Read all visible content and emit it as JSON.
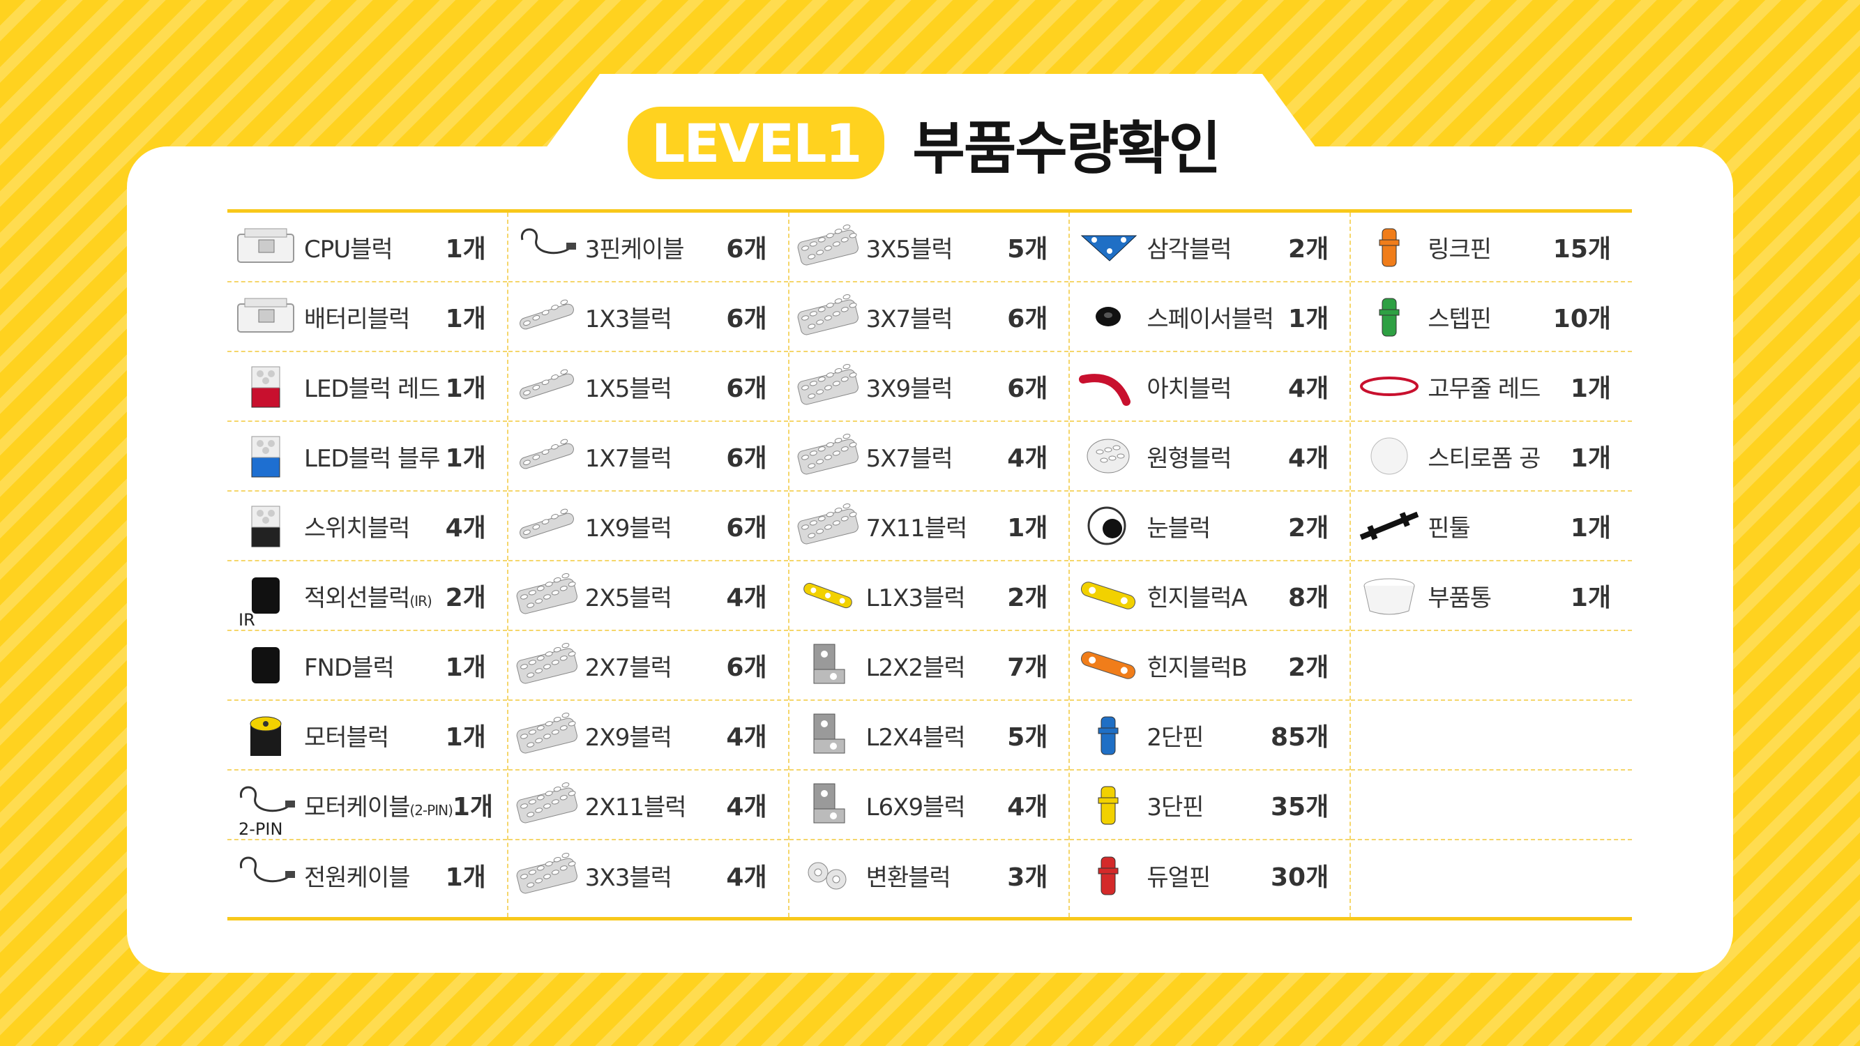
{
  "header": {
    "level": "LEVEL1",
    "title": "부품수량확인"
  },
  "columns": [
    {
      "items": [
        {
          "name": "CPU블럭",
          "qty": "1개",
          "icon": "cpu-block"
        },
        {
          "name": "배터리블럭",
          "qty": "1개",
          "icon": "battery-block"
        },
        {
          "name": "LED블럭 레드",
          "qty": "1개",
          "icon": "led-red"
        },
        {
          "name": "LED블럭 블루",
          "qty": "1개",
          "icon": "led-blue"
        },
        {
          "name": "스위치블럭",
          "qty": "4개",
          "icon": "switch-block"
        },
        {
          "name": "적외선블럭",
          "suffix": "(IR)",
          "qty": "2개",
          "icon": "ir-block",
          "tag": "IR"
        },
        {
          "name": "FND블럭",
          "qty": "1개",
          "icon": "fnd-block"
        },
        {
          "name": "모터블럭",
          "qty": "1개",
          "icon": "motor-block"
        },
        {
          "name": "모터케이블",
          "suffix": "(2-PIN)",
          "qty": "1개",
          "icon": "motor-cable",
          "tag": "2-PIN"
        },
        {
          "name": "전원케이블",
          "qty": "1개",
          "icon": "power-cable"
        }
      ]
    },
    {
      "items": [
        {
          "name": "3핀케이블",
          "qty": "6개",
          "icon": "cable"
        },
        {
          "name": "1X3블럭",
          "qty": "6개",
          "icon": "beam"
        },
        {
          "name": "1X5블럭",
          "qty": "6개",
          "icon": "beam"
        },
        {
          "name": "1X7블럭",
          "qty": "6개",
          "icon": "beam"
        },
        {
          "name": "1X9블럭",
          "qty": "6개",
          "icon": "beam"
        },
        {
          "name": "2X5블럭",
          "qty": "4개",
          "icon": "plate"
        },
        {
          "name": "2X7블럭",
          "qty": "6개",
          "icon": "plate"
        },
        {
          "name": "2X9블럭",
          "qty": "4개",
          "icon": "plate"
        },
        {
          "name": "2X11블럭",
          "qty": "4개",
          "icon": "plate"
        },
        {
          "name": "3X3블럭",
          "qty": "4개",
          "icon": "plate"
        }
      ]
    },
    {
      "items": [
        {
          "name": "3X5블럭",
          "qty": "5개",
          "icon": "plate"
        },
        {
          "name": "3X7블럭",
          "qty": "6개",
          "icon": "plate"
        },
        {
          "name": "3X9블럭",
          "qty": "6개",
          "icon": "plate"
        },
        {
          "name": "5X7블럭",
          "qty": "4개",
          "icon": "plate"
        },
        {
          "name": "7X11블럭",
          "qty": "1개",
          "icon": "plate"
        },
        {
          "name": "L1X3블럭",
          "qty": "2개",
          "icon": "l-yellow"
        },
        {
          "name": "L2X2블럭",
          "qty": "7개",
          "icon": "bracket"
        },
        {
          "name": "L2X4블럭",
          "qty": "5개",
          "icon": "bracket"
        },
        {
          "name": "L6X9블럭",
          "qty": "4개",
          "icon": "bracket"
        },
        {
          "name": "변환블럭",
          "qty": "3개",
          "icon": "converter"
        }
      ]
    },
    {
      "items": [
        {
          "name": "삼각블럭",
          "qty": "2개",
          "icon": "triangle"
        },
        {
          "name": "스페이서블럭",
          "qty": "1개",
          "icon": "spacer"
        },
        {
          "name": "아치블럭",
          "qty": "4개",
          "icon": "arch"
        },
        {
          "name": "원형블럭",
          "qty": "4개",
          "icon": "round"
        },
        {
          "name": "눈블럭",
          "qty": "2개",
          "icon": "eye"
        },
        {
          "name": "힌지블럭A",
          "qty": "8개",
          "icon": "hinge-yellow"
        },
        {
          "name": "힌지블럭B",
          "qty": "2개",
          "icon": "hinge-orange"
        },
        {
          "name": "2단핀",
          "qty": "85개",
          "icon": "pin-blue"
        },
        {
          "name": "3단핀",
          "qty": "35개",
          "icon": "pin-yellow"
        },
        {
          "name": "듀얼핀",
          "qty": "30개",
          "icon": "pin-red"
        }
      ]
    },
    {
      "items": [
        {
          "name": "링크핀",
          "qty": "15개",
          "icon": "pin-orange"
        },
        {
          "name": "스텝핀",
          "qty": "10개",
          "icon": "pin-green"
        },
        {
          "name": "고무줄 레드",
          "qty": "1개",
          "icon": "rubber-band"
        },
        {
          "name": "스티로폼 공",
          "qty": "1개",
          "icon": "foam-ball"
        },
        {
          "name": "핀툴",
          "qty": "1개",
          "icon": "pin-tool"
        },
        {
          "name": "부품통",
          "qty": "1개",
          "icon": "container"
        },
        {
          "name": "",
          "qty": "",
          "icon": ""
        },
        {
          "name": "",
          "qty": "",
          "icon": ""
        },
        {
          "name": "",
          "qty": "",
          "icon": ""
        },
        {
          "name": "",
          "qty": "",
          "icon": ""
        }
      ]
    }
  ],
  "colors": {
    "accent": "#FFD21F",
    "led_red": "#C8102E",
    "led_blue": "#1E6FD1",
    "pin_blue": "#1F6FC5",
    "pin_yellow": "#F2D100",
    "pin_red": "#D42A2A",
    "pin_orange": "#F07D1A",
    "pin_green": "#2EA043"
  }
}
